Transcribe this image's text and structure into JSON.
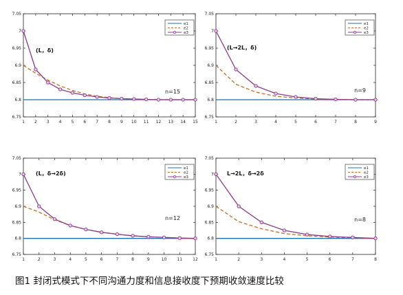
{
  "caption": "图1  封闭式模式下不同沟通力度和信息接收度下预期收敛速度比较",
  "colors": {
    "e1": "#1f6fa8",
    "e2": "#d2691e",
    "e3": "#8b3a8b",
    "marker_fill": "#e7c6e7"
  },
  "chart_data": [
    {
      "type": "line",
      "title": "",
      "annotation": "(L，δ)",
      "n_label": "n=15",
      "legend": [
        "e1",
        "e2",
        "e3"
      ],
      "legend_position": "top-right",
      "grid": false,
      "xlim": [
        1,
        15
      ],
      "ylim": [
        6.75,
        7.05
      ],
      "x_ticks": [
        1,
        2,
        3,
        4,
        5,
        6,
        7,
        8,
        9,
        10,
        11,
        12,
        13,
        14,
        15
      ],
      "y_ticks": [
        "6.75",
        "6.8",
        "6.85",
        "6.9",
        "6.95",
        "7",
        "7.05"
      ],
      "x": [
        1,
        2,
        3,
        4,
        5,
        6,
        7,
        8,
        9,
        10,
        11,
        12,
        13,
        14,
        15
      ],
      "series": [
        {
          "name": "e1",
          "values": [
            6.8,
            6.8,
            6.8,
            6.8,
            6.8,
            6.8,
            6.8,
            6.8,
            6.8,
            6.8,
            6.8,
            6.8,
            6.8,
            6.8,
            6.8
          ]
        },
        {
          "name": "e2",
          "values": [
            6.9,
            6.877,
            6.857,
            6.84,
            6.827,
            6.817,
            6.81,
            6.806,
            6.803,
            6.802,
            6.801,
            6.8,
            6.8,
            6.8,
            6.8
          ]
        },
        {
          "name": "e3",
          "values": [
            7.0,
            6.888,
            6.85,
            6.83,
            6.82,
            6.813,
            6.808,
            6.805,
            6.803,
            6.802,
            6.801,
            6.8,
            6.8,
            6.8,
            6.8
          ]
        }
      ]
    },
    {
      "type": "line",
      "title": "",
      "annotation": "(L→2L，δ)",
      "n_label": "n=9",
      "legend": [
        "e1",
        "e2",
        "e3"
      ],
      "legend_position": "top-right",
      "grid": false,
      "xlim": [
        1,
        9
      ],
      "ylim": [
        6.75,
        7.05
      ],
      "x_ticks": [
        1,
        2,
        3,
        4,
        5,
        6,
        7,
        8,
        9
      ],
      "y_ticks": [
        "6.75",
        "6.8",
        "6.85",
        "6.9",
        "6.95",
        "7",
        "7.05"
      ],
      "x": [
        1,
        2,
        3,
        4,
        5,
        6,
        7,
        8,
        9
      ],
      "series": [
        {
          "name": "e1",
          "values": [
            6.8,
            6.8,
            6.8,
            6.8,
            6.8,
            6.8,
            6.8,
            6.8,
            6.8
          ]
        },
        {
          "name": "e2",
          "values": [
            6.9,
            6.845,
            6.822,
            6.81,
            6.805,
            6.802,
            6.801,
            6.8,
            6.8
          ]
        },
        {
          "name": "e3",
          "values": [
            7.0,
            6.888,
            6.84,
            6.818,
            6.808,
            6.803,
            6.801,
            6.8,
            6.8
          ]
        }
      ]
    },
    {
      "type": "line",
      "title": "",
      "annotation": "(L，δ→2δ)",
      "n_label": "n=12",
      "legend": [
        "e1",
        "e2",
        "e3"
      ],
      "legend_position": "top-right",
      "grid": false,
      "xlim": [
        1,
        12
      ],
      "ylim": [
        6.75,
        7.05
      ],
      "x_ticks": [
        1,
        2,
        3,
        4,
        5,
        6,
        7,
        8,
        9,
        10,
        11,
        12
      ],
      "y_ticks": [
        "6.75",
        "6.8",
        "6.85",
        "6.9",
        "6.95",
        "7",
        "7.05"
      ],
      "x": [
        1,
        2,
        3,
        4,
        5,
        6,
        7,
        8,
        9,
        10,
        11,
        12
      ],
      "series": [
        {
          "name": "e1",
          "values": [
            6.8,
            6.8,
            6.8,
            6.8,
            6.8,
            6.8,
            6.8,
            6.8,
            6.8,
            6.8,
            6.8,
            6.8
          ]
        },
        {
          "name": "e2",
          "values": [
            6.9,
            6.882,
            6.858,
            6.84,
            6.828,
            6.819,
            6.813,
            6.808,
            6.805,
            6.803,
            6.801,
            6.8
          ]
        },
        {
          "name": "e3",
          "values": [
            7.0,
            6.9,
            6.86,
            6.84,
            6.828,
            6.819,
            6.813,
            6.808,
            6.805,
            6.803,
            6.801,
            6.8
          ]
        }
      ]
    },
    {
      "type": "line",
      "title": "",
      "annotation": "L→2L，δ→2δ",
      "n_label": "n=8",
      "legend": [
        "e1",
        "e2",
        "e3"
      ],
      "legend_position": "top-right",
      "grid": false,
      "xlim": [
        1,
        8
      ],
      "ylim": [
        6.75,
        7.05
      ],
      "x_ticks": [
        1,
        2,
        3,
        4,
        5,
        6,
        7,
        8
      ],
      "y_ticks": [
        "6.75",
        "6.8",
        "6.85",
        "6.9",
        "6.95",
        "7",
        "7.05"
      ],
      "x": [
        1,
        2,
        3,
        4,
        5,
        6,
        7,
        8
      ],
      "series": [
        {
          "name": "e1",
          "values": [
            6.8,
            6.8,
            6.8,
            6.8,
            6.8,
            6.8,
            6.8,
            6.8
          ]
        },
        {
          "name": "e2",
          "values": [
            6.9,
            6.852,
            6.83,
            6.815,
            6.808,
            6.804,
            6.802,
            6.8
          ]
        },
        {
          "name": "e3",
          "values": [
            7.0,
            6.9,
            6.85,
            6.825,
            6.812,
            6.806,
            6.803,
            6.8
          ]
        }
      ]
    }
  ]
}
